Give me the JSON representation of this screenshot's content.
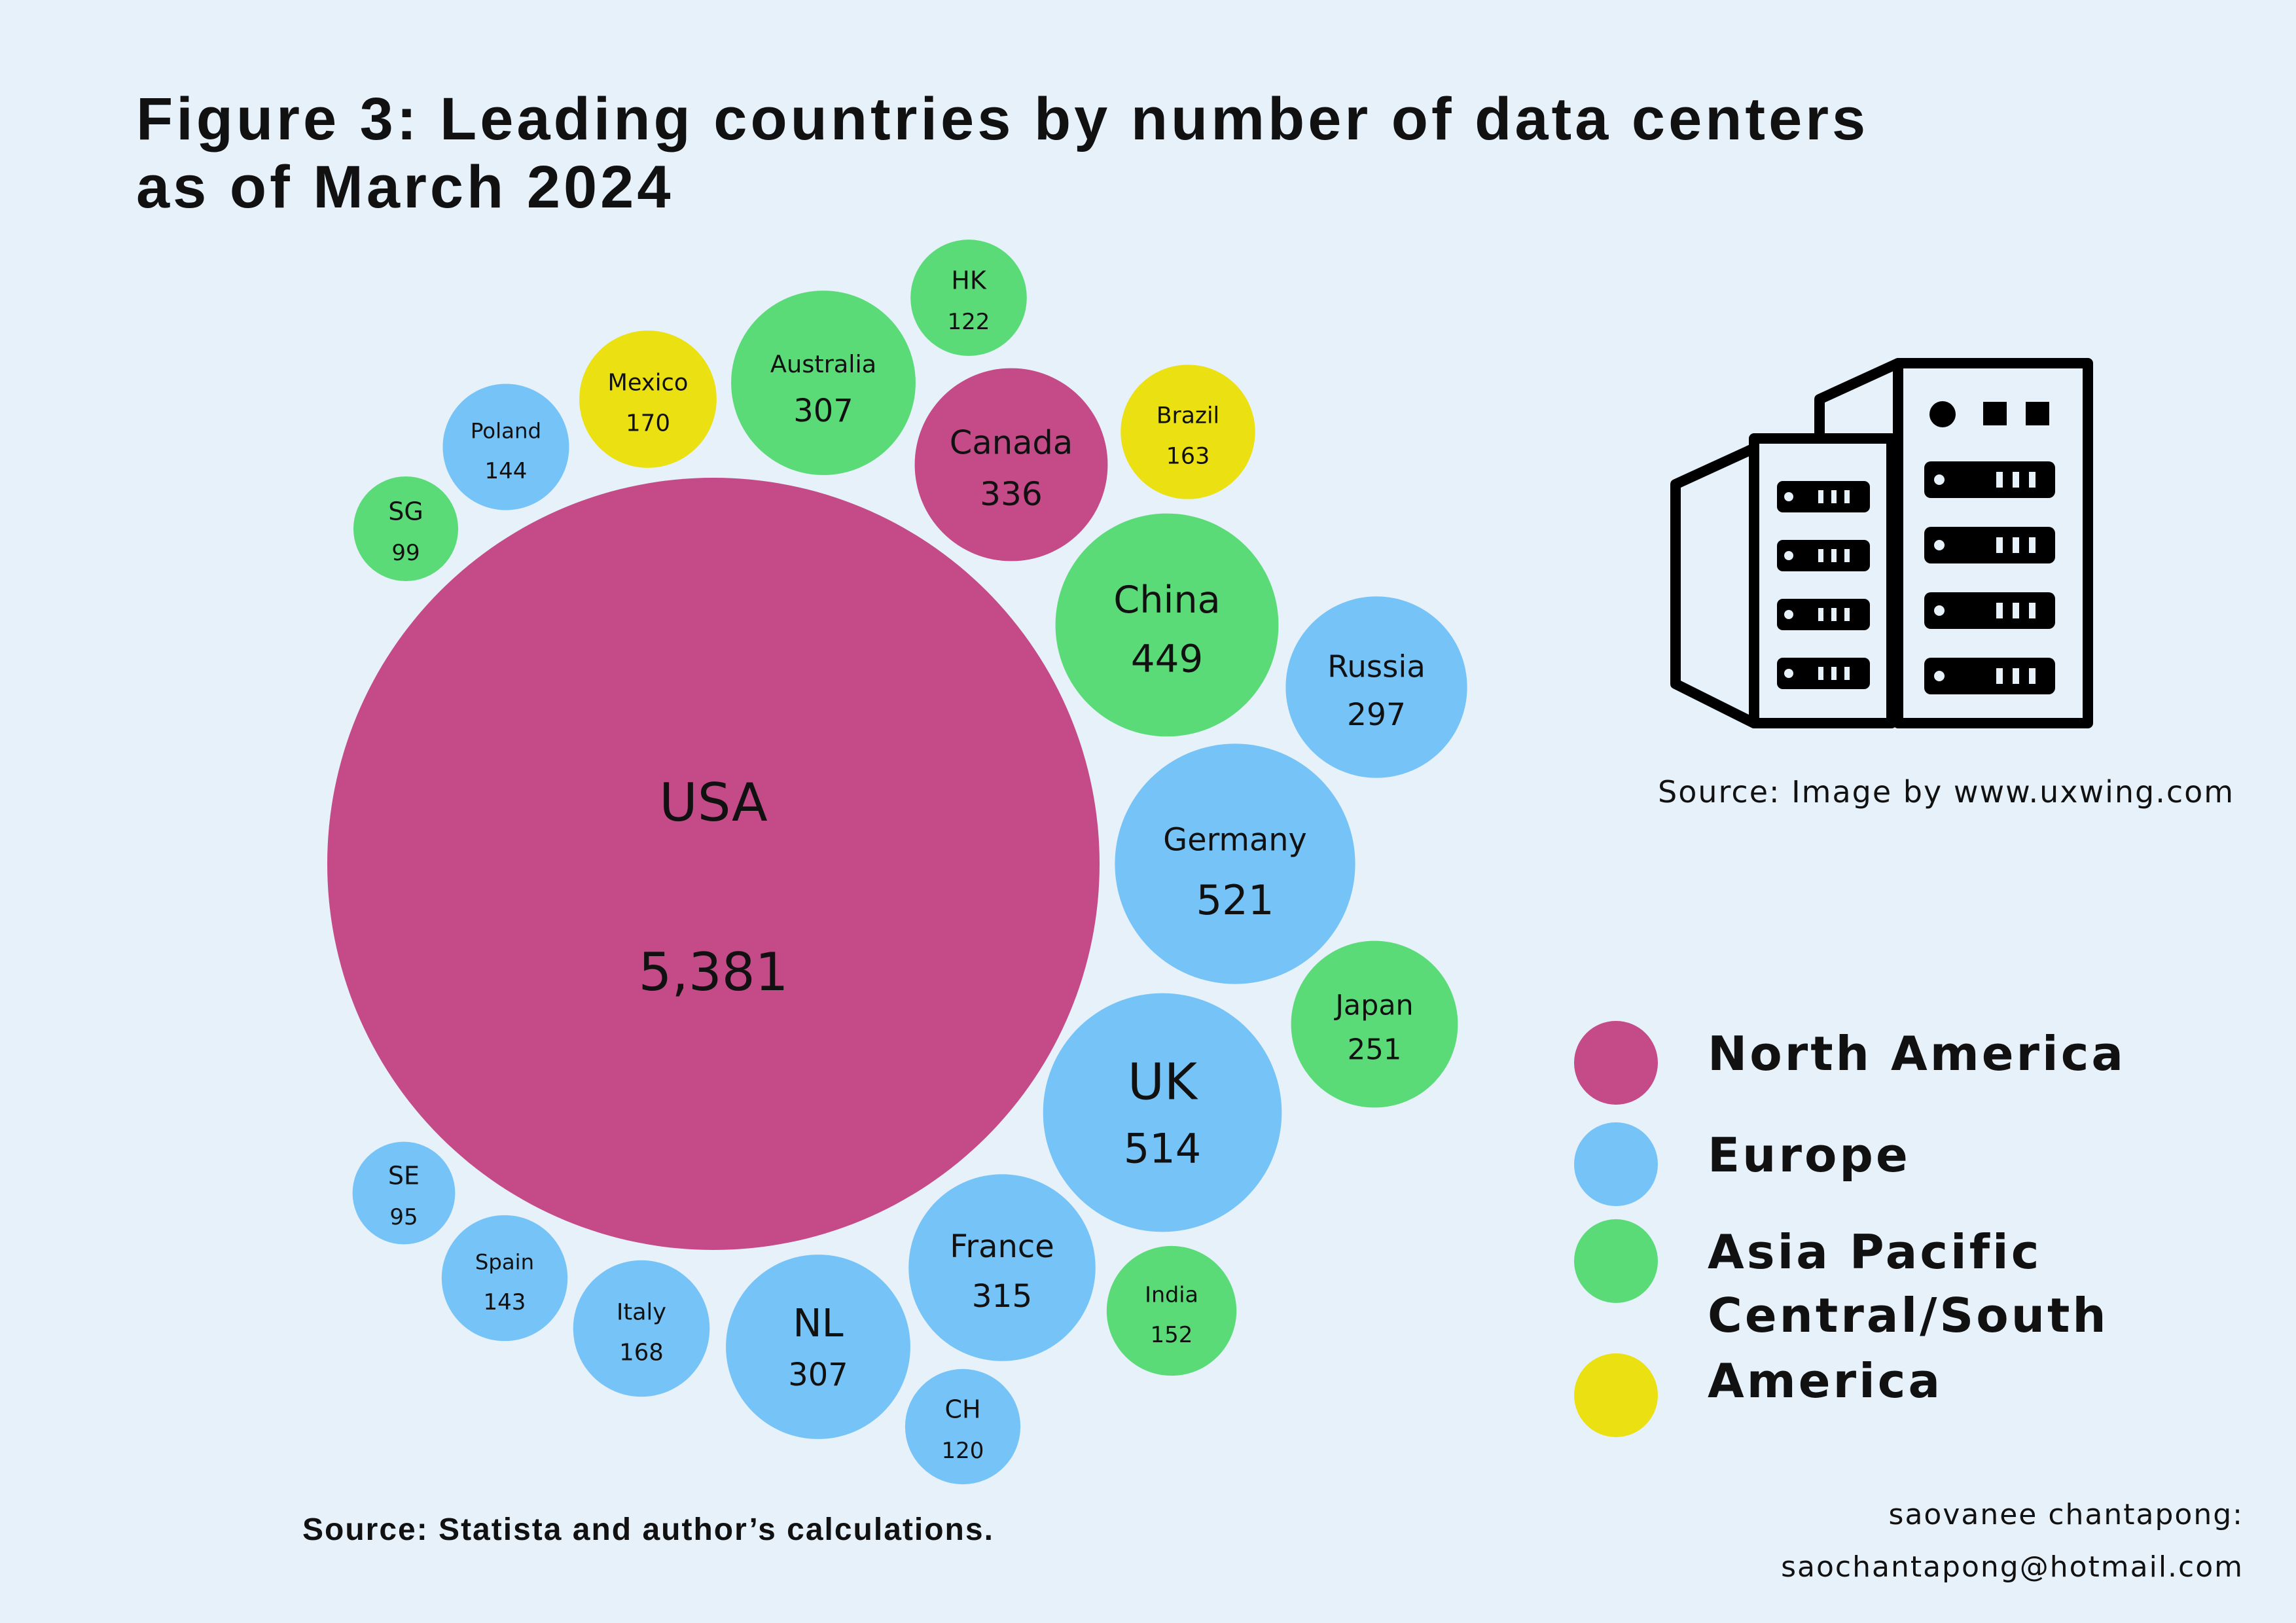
{
  "title": {
    "line1": "Figure 3: Leading countries by number of data centers",
    "line2": "as of March 2024"
  },
  "sources": {
    "data_source": "Source: Statista and author’s calculations.",
    "image_source": "Source: Image by www.uxwing.com"
  },
  "author": {
    "line1": "saovanee chantapong:",
    "line2": "saochantapong@hotmail.com"
  },
  "legend": {
    "items": [
      {
        "label": "North America",
        "color": "#c44a88"
      },
      {
        "label": "Europe",
        "color": "#76c3f7"
      },
      {
        "label": "Asia Pacific",
        "color": "#5bdb78"
      },
      {
        "label": "Central/South America",
        "color": "#ebe011"
      }
    ]
  },
  "icons": {
    "building": "data-center-building-icon"
  },
  "chart_data": {
    "type": "bubble",
    "series": [
      {
        "category": "USA",
        "value": 5381,
        "value_label": "5,381",
        "region": "North America",
        "color": "#c44a88"
      },
      {
        "category": "Canada",
        "value": 336,
        "value_label": "336",
        "region": "North America",
        "color": "#c44a88"
      },
      {
        "category": "Germany",
        "value": 521,
        "value_label": "521",
        "region": "Europe",
        "color": "#76c3f7"
      },
      {
        "category": "UK",
        "value": 514,
        "value_label": "514",
        "region": "Europe",
        "color": "#76c3f7"
      },
      {
        "category": "China",
        "value": 449,
        "value_label": "449",
        "region": "Asia Pacific",
        "color": "#5bdb78"
      },
      {
        "category": "France",
        "value": 315,
        "value_label": "315",
        "region": "Europe",
        "color": "#76c3f7"
      },
      {
        "category": "Australia",
        "value": 307,
        "value_label": "307",
        "region": "Asia Pacific",
        "color": "#5bdb78"
      },
      {
        "category": "NL",
        "value": 307,
        "value_label": "307",
        "region": "Europe",
        "color": "#76c3f7"
      },
      {
        "category": "Russia",
        "value": 297,
        "value_label": "297",
        "region": "Europe",
        "color": "#76c3f7"
      },
      {
        "category": "Japan",
        "value": 251,
        "value_label": "251",
        "region": "Asia Pacific",
        "color": "#5bdb78"
      },
      {
        "category": "Mexico",
        "value": 170,
        "value_label": "170",
        "region": "Central/South America",
        "color": "#ebe011"
      },
      {
        "category": "Italy",
        "value": 168,
        "value_label": "168",
        "region": "Europe",
        "color": "#76c3f7"
      },
      {
        "category": "Brazil",
        "value": 163,
        "value_label": "163",
        "region": "Central/South America",
        "color": "#ebe011"
      },
      {
        "category": "India",
        "value": 152,
        "value_label": "152",
        "region": "Asia Pacific",
        "color": "#5bdb78"
      },
      {
        "category": "Poland",
        "value": 144,
        "value_label": "144",
        "region": "Europe",
        "color": "#76c3f7"
      },
      {
        "category": "Spain",
        "value": 143,
        "value_label": "143",
        "region": "Europe",
        "color": "#76c3f7"
      },
      {
        "category": "HK",
        "value": 122,
        "value_label": "122",
        "region": "Asia Pacific",
        "color": "#5bdb78"
      },
      {
        "category": "CH",
        "value": 120,
        "value_label": "120",
        "region": "Europe",
        "color": "#76c3f7"
      },
      {
        "category": "SG",
        "value": 99,
        "value_label": "99",
        "region": "Asia Pacific",
        "color": "#5bdb78"
      },
      {
        "category": "SE",
        "value": 95,
        "value_label": "95",
        "region": "Europe",
        "color": "#76c3f7"
      }
    ]
  }
}
